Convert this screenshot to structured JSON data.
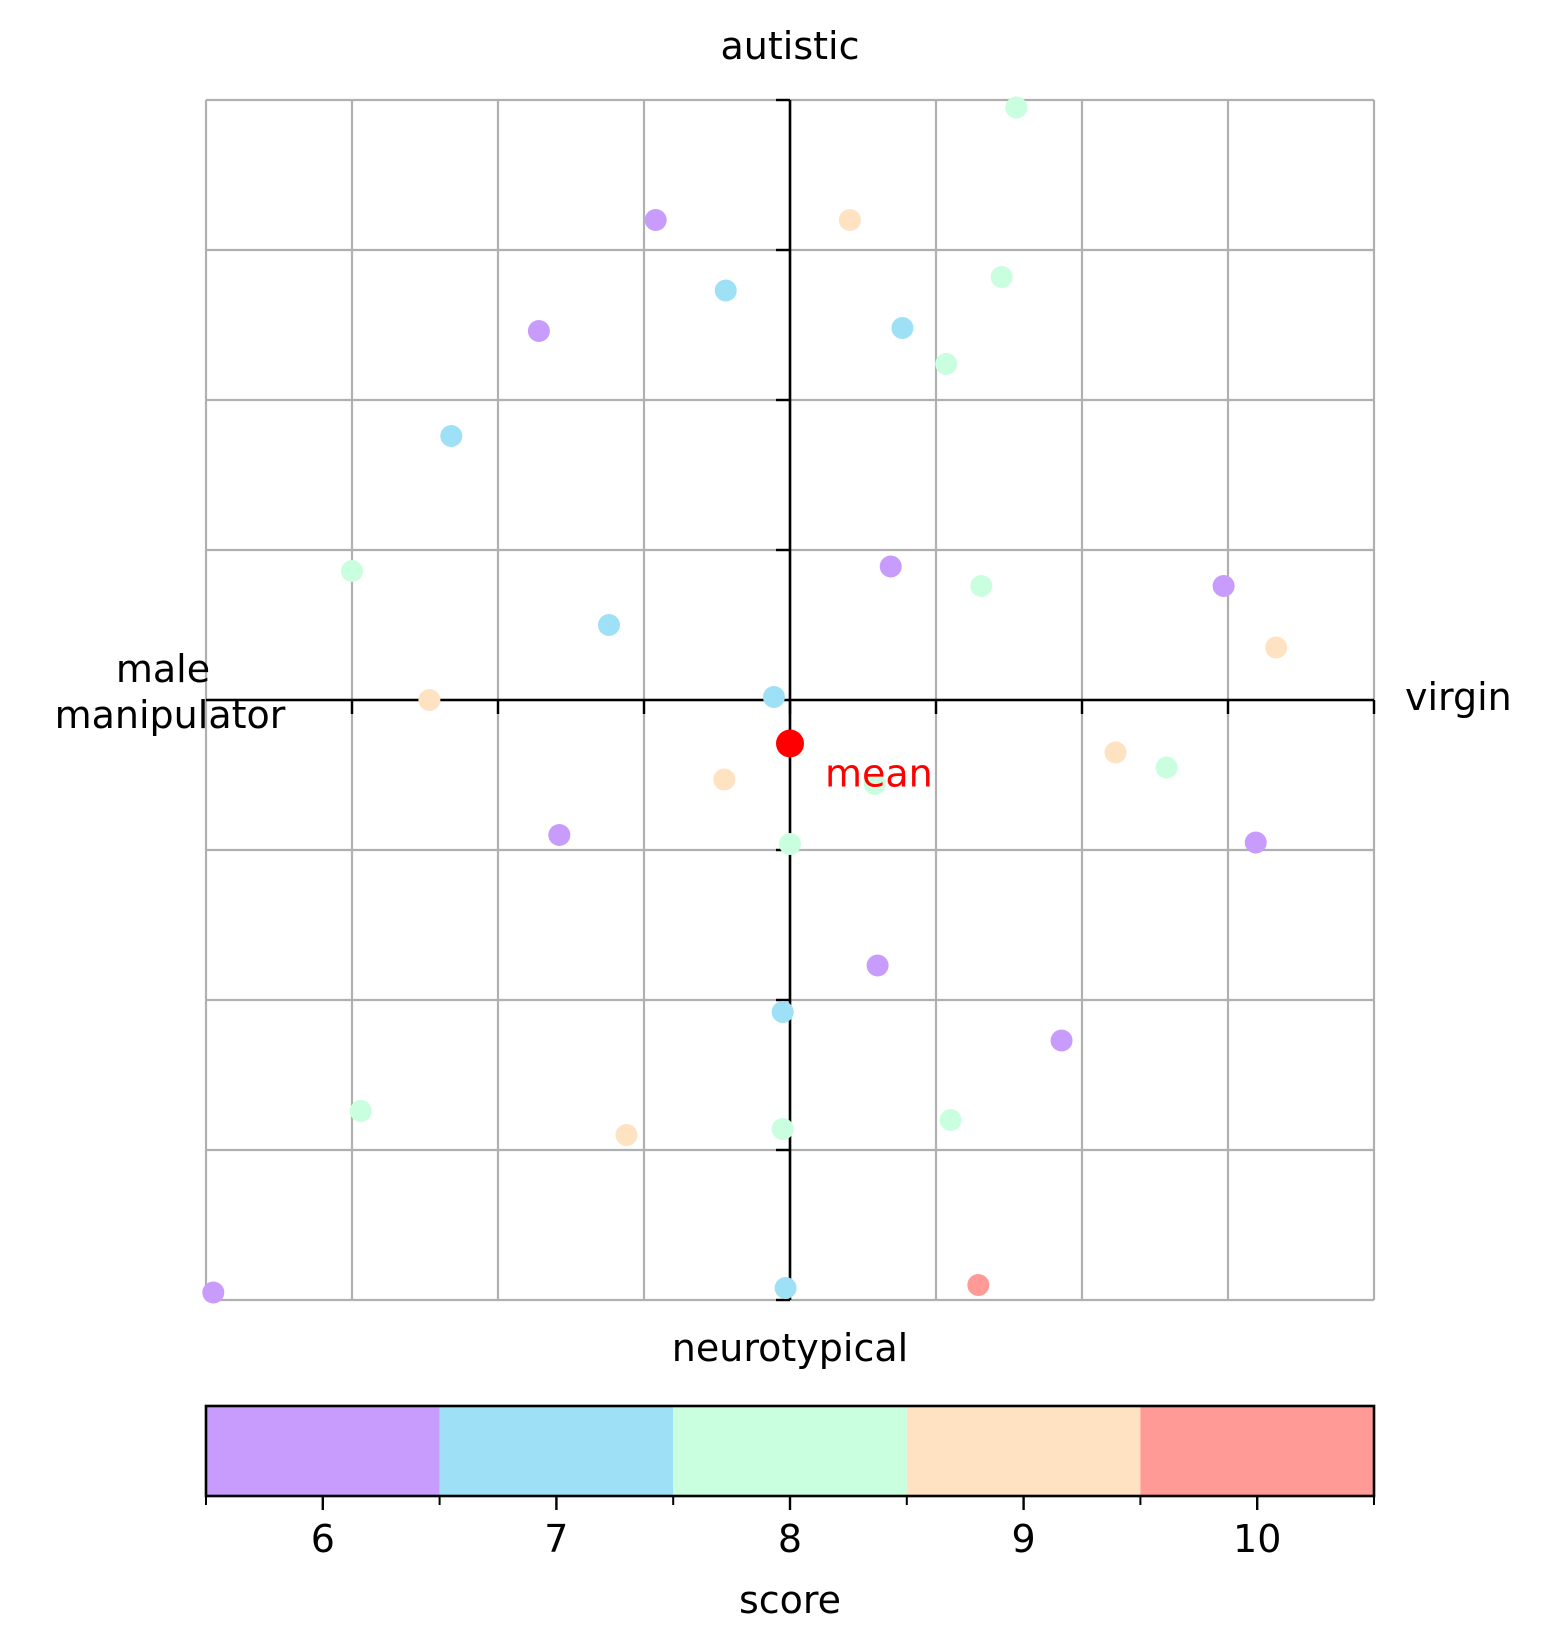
{
  "chart_data": {
    "type": "scatter",
    "axis_labels": {
      "top": "autistic",
      "bottom": "neurotypical",
      "left": "male\nmanipulator",
      "right": "virgin"
    },
    "xlim": [
      -4,
      4
    ],
    "ylim": [
      -4,
      4
    ],
    "grid": true,
    "points": [
      {
        "x": 1.55,
        "y": 3.95,
        "score": 8
      },
      {
        "x": -0.92,
        "y": 3.2,
        "score": 6
      },
      {
        "x": 0.41,
        "y": 3.2,
        "score": 9
      },
      {
        "x": 1.45,
        "y": 2.82,
        "score": 8
      },
      {
        "x": -0.44,
        "y": 2.73,
        "score": 7
      },
      {
        "x": -1.72,
        "y": 2.46,
        "score": 6
      },
      {
        "x": 0.77,
        "y": 2.48,
        "score": 7
      },
      {
        "x": 1.07,
        "y": 2.24,
        "score": 8
      },
      {
        "x": -2.32,
        "y": 1.76,
        "score": 7
      },
      {
        "x": -3.0,
        "y": 0.86,
        "score": 8
      },
      {
        "x": 0.69,
        "y": 0.89,
        "score": 6
      },
      {
        "x": 1.31,
        "y": 0.76,
        "score": 8
      },
      {
        "x": 2.97,
        "y": 0.76,
        "score": 6
      },
      {
        "x": -1.24,
        "y": 0.5,
        "score": 7
      },
      {
        "x": 3.33,
        "y": 0.35,
        "score": 9
      },
      {
        "x": -2.47,
        "y": 0.0,
        "score": 9
      },
      {
        "x": -0.11,
        "y": 0.02,
        "score": 7
      },
      {
        "x": 2.23,
        "y": -0.35,
        "score": 9
      },
      {
        "x": 2.58,
        "y": -0.45,
        "score": 8
      },
      {
        "x": -0.45,
        "y": -0.53,
        "score": 9
      },
      {
        "x": 0.58,
        "y": -0.56,
        "score": 8
      },
      {
        "x": -1.58,
        "y": -0.9,
        "score": 6
      },
      {
        "x": 3.19,
        "y": -0.95,
        "score": 6
      },
      {
        "x": 0.0,
        "y": -0.96,
        "score": 8
      },
      {
        "x": 0.6,
        "y": -1.77,
        "score": 6
      },
      {
        "x": -0.05,
        "y": -2.08,
        "score": 7
      },
      {
        "x": 1.86,
        "y": -2.27,
        "score": 6
      },
      {
        "x": -2.94,
        "y": -2.74,
        "score": 8
      },
      {
        "x": 1.1,
        "y": -2.8,
        "score": 8
      },
      {
        "x": -0.05,
        "y": -2.86,
        "score": 8
      },
      {
        "x": -1.12,
        "y": -2.9,
        "score": 9
      },
      {
        "x": 1.29,
        "y": -3.9,
        "score": 10
      },
      {
        "x": -3.95,
        "y": -3.95,
        "score": 6
      },
      {
        "x": -0.03,
        "y": -3.92,
        "score": 7
      }
    ],
    "mean": {
      "x": 0.0,
      "y": -0.29,
      "label": "mean",
      "color": "#ff0000"
    },
    "colorbar": {
      "label": "score",
      "ticks": [
        6,
        7,
        8,
        9,
        10
      ],
      "range": [
        5.5,
        10.5
      ],
      "colors": {
        "6": "#c89cfc",
        "7": "#9ee0f6",
        "8": "#c9fede",
        "9": "#ffe2c2",
        "10": "#ff9a96"
      }
    }
  }
}
